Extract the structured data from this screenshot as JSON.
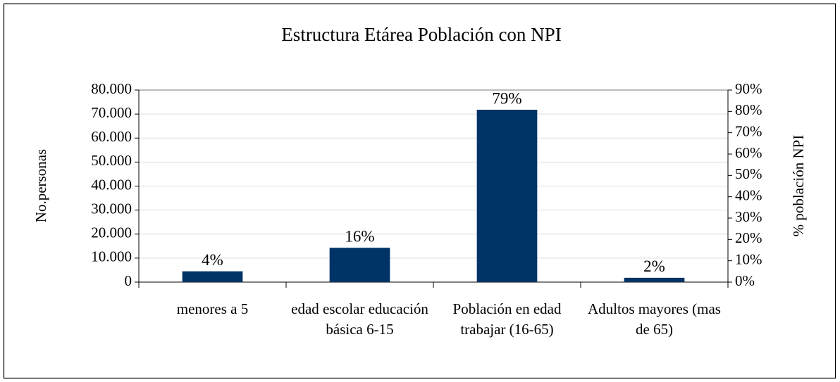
{
  "chart_data": {
    "type": "bar",
    "title": "Estructura Etárea Población con NPI",
    "categories": [
      "menores a 5",
      "edad escolar educación básica 6-15",
      "Población en edad trabajar (16-65)",
      "Adultos mayores (mas de 65)"
    ],
    "values": [
      4500,
      14300,
      71800,
      1800
    ],
    "color": "#003366",
    "percent_values": [
      4,
      16,
      79,
      2
    ],
    "percent_labels": [
      "4%",
      "16%",
      "79%",
      "2%"
    ],
    "ylabel": "No.personas",
    "y2label": "% población NPI",
    "ylim": [
      0,
      80000
    ],
    "yticks": [
      0,
      {
        "value": 10000,
        "label": "10.000"
      },
      {
        "value": 20000,
        "label": "20.000"
      },
      {
        "value": 30000,
        "label": "30.000"
      },
      {
        "value": 40000,
        "label": "40.000"
      },
      {
        "value": 50000,
        "label": "50.000"
      },
      {
        "value": 60000,
        "label": "60.000"
      },
      {
        "value": 70000,
        "label": "70.000"
      },
      {
        "value": 80000,
        "label": "80.000"
      }
    ],
    "y2lim": [
      0,
      90
    ],
    "y2ticks": [
      {
        "value": 0,
        "label": "0%"
      },
      {
        "value": 10,
        "label": "10%"
      },
      {
        "value": 20,
        "label": "20%"
      },
      {
        "value": 30,
        "label": "30%"
      },
      {
        "value": 40,
        "label": "40%"
      },
      {
        "value": 50,
        "label": "50%"
      },
      {
        "value": 60,
        "label": "60%"
      },
      {
        "value": 70,
        "label": "70%"
      },
      {
        "value": 80,
        "label": "80%"
      },
      {
        "value": 90,
        "label": "90%"
      }
    ],
    "grid": true
  }
}
